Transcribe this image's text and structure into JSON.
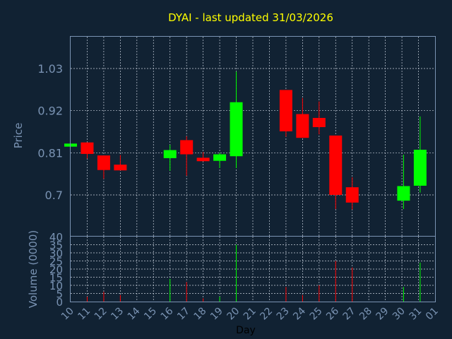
{
  "chart_data": {
    "type": "candlestick",
    "title": "DYAI - last updated 31/03/2026",
    "xlabel": "Day",
    "ylabel": "Price",
    "volume_label": "Volume (0000)",
    "grid": true,
    "colors": {
      "up": "#00ff00",
      "down": "#ff0000",
      "text": "#7a93b3",
      "title": "#ffff00",
      "background": "#112233"
    },
    "x_ticks": [
      "10",
      "11",
      "12",
      "13",
      "14",
      "15",
      "16",
      "17",
      "18",
      "19",
      "20",
      "21",
      "22",
      "23",
      "24",
      "25",
      "26",
      "27",
      "28",
      "29",
      "30",
      "31",
      "01"
    ],
    "price_ticks": [
      "1.03",
      "0.92",
      "0.81",
      "0.7"
    ],
    "price_tick_values": [
      1.03,
      0.92,
      0.81,
      0.7
    ],
    "price_range": [
      0.593,
      1.113
    ],
    "volume_ticks": [
      "40",
      "35",
      "30",
      "25",
      "20",
      "15",
      "10",
      "5",
      "0"
    ],
    "volume_tick_values": [
      40,
      35,
      30,
      25,
      20,
      15,
      10,
      5,
      0
    ],
    "volume_range": [
      0,
      40
    ],
    "candles": [
      {
        "slot": 0,
        "open": 0.826,
        "close": 0.834,
        "high": 0.834,
        "low": 0.826,
        "volume": 0
      },
      {
        "slot": 1,
        "open": 0.837,
        "close": 0.807,
        "high": 0.837,
        "low": 0.795,
        "volume": 3
      },
      {
        "slot": 2,
        "open": 0.803,
        "close": 0.765,
        "high": 0.803,
        "low": 0.742,
        "volume": 6
      },
      {
        "slot": 3,
        "open": 0.779,
        "close": 0.764,
        "high": 0.804,
        "low": 0.764,
        "volume": 4
      },
      {
        "slot": 6,
        "open": 0.796,
        "close": 0.817,
        "high": 0.831,
        "low": 0.763,
        "volume": 14
      },
      {
        "slot": 7,
        "open": 0.843,
        "close": 0.806,
        "high": 0.853,
        "low": 0.75,
        "volume": 12
      },
      {
        "slot": 8,
        "open": 0.797,
        "close": 0.788,
        "high": 0.812,
        "low": 0.788,
        "volume": 2
      },
      {
        "slot": 9,
        "open": 0.789,
        "close": 0.806,
        "high": 0.81,
        "low": 0.77,
        "volume": 3
      },
      {
        "slot": 10,
        "open": 0.801,
        "close": 0.942,
        "high": 1.022,
        "low": 0.77,
        "volume": 35
      },
      {
        "slot": 13,
        "open": 0.974,
        "close": 0.866,
        "high": 0.974,
        "low": 0.852,
        "volume": 9
      },
      {
        "slot": 14,
        "open": 0.911,
        "close": 0.849,
        "high": 0.953,
        "low": 0.849,
        "volume": 4
      },
      {
        "slot": 15,
        "open": 0.901,
        "close": 0.877,
        "high": 0.944,
        "low": 0.858,
        "volume": 10
      },
      {
        "slot": 16,
        "open": 0.855,
        "close": 0.7,
        "high": 0.855,
        "low": 0.663,
        "volume": 25
      },
      {
        "slot": 17,
        "open": 0.72,
        "close": 0.68,
        "high": 0.746,
        "low": 0.662,
        "volume": 21
      },
      {
        "slot": 20.1,
        "open": 0.685,
        "close": 0.723,
        "high": 0.805,
        "low": 0.663,
        "volume": 9
      },
      {
        "slot": 21.1,
        "open": 0.724,
        "close": 0.818,
        "high": 0.905,
        "low": 0.706,
        "volume": 24
      }
    ]
  }
}
